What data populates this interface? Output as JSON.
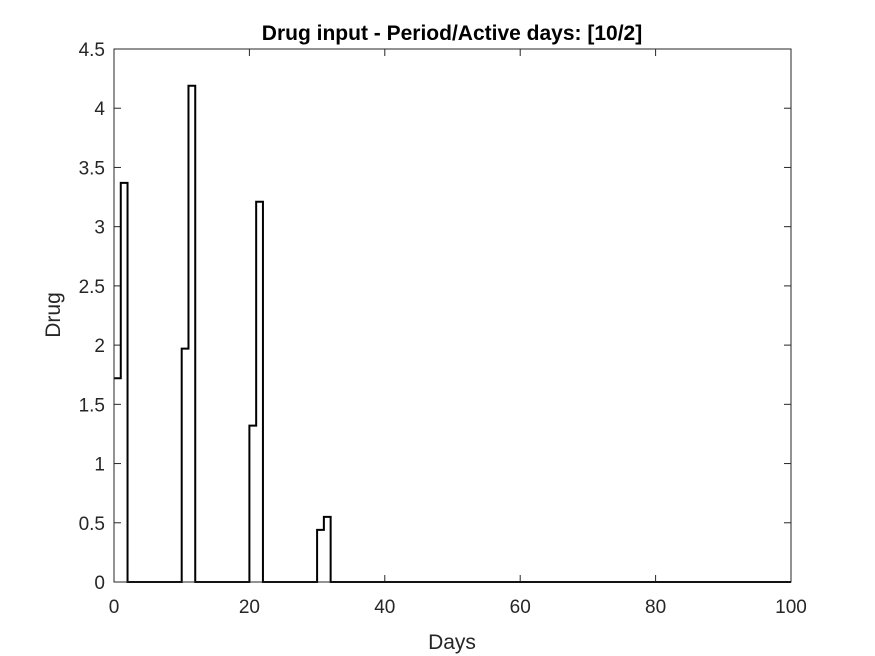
{
  "chart_data": {
    "type": "line",
    "style": "stairs",
    "title": "Drug input - Period/Active days: [10/2]",
    "xlabel": "Days",
    "ylabel": "Drug",
    "xlim": [
      0,
      100
    ],
    "ylim": [
      0,
      4.5
    ],
    "xticks": [
      0,
      20,
      40,
      60,
      80,
      100
    ],
    "xtick_labels": [
      "0",
      "20",
      "40",
      "60",
      "80",
      "100"
    ],
    "yticks": [
      0,
      0.5,
      1,
      1.5,
      2,
      2.5,
      3,
      3.5,
      4,
      4.5
    ],
    "ytick_labels": [
      "0",
      "0.5",
      "1",
      "1.5",
      "2",
      "2.5",
      "3",
      "3.5",
      "4",
      "4.5"
    ],
    "grid": false,
    "box": true,
    "line_color": "#000000",
    "series": [
      {
        "x": [
          0,
          1,
          2,
          10,
          11,
          12,
          20,
          21,
          22,
          30,
          31,
          32,
          100
        ],
        "y": [
          1.72,
          3.37,
          0,
          1.97,
          4.19,
          0,
          1.32,
          3.21,
          0,
          0.44,
          0.55,
          0,
          0
        ]
      }
    ]
  }
}
